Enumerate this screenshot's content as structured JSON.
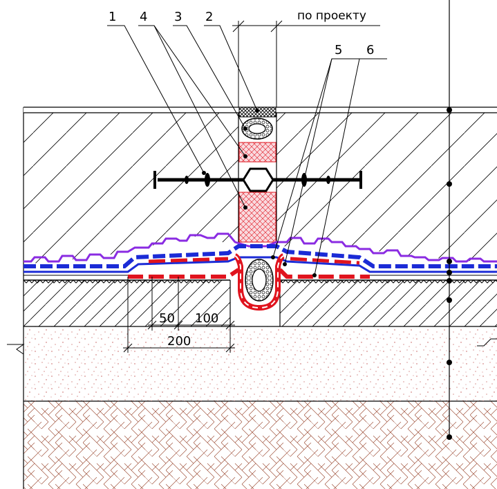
{
  "callouts": [
    "1",
    "4",
    "3",
    "2",
    "5",
    "6"
  ],
  "note": "по проекту",
  "dimensions": [
    "50",
    "100",
    "200"
  ],
  "colors": {
    "outline": "#000000",
    "red": "#e0141e",
    "blue": "#1b2bd6",
    "purple": "#8a2be2",
    "pink_fill": "#f4b8c0",
    "sand_dots": "#c0504d",
    "gravel_hatch": "#a0523c"
  }
}
